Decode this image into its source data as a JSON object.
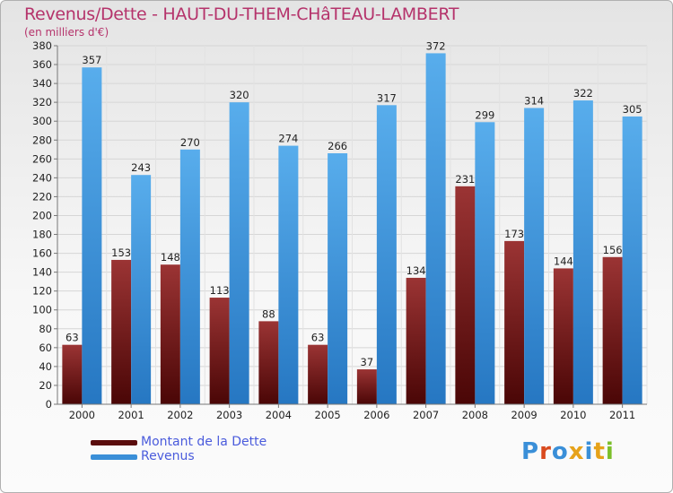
{
  "header": {
    "title": "Revenus/Dette - HAUT-DU-THEM-CHâTEAU-LAMBERT",
    "subtitle": "(en milliers d'€)"
  },
  "legend": {
    "items": [
      "Montant de la Dette",
      "Revenus"
    ]
  },
  "logo": {
    "text": "Proxiti"
  },
  "colors": {
    "dette": "#7a1f1f",
    "revenus": "#3a8fd8",
    "text": "#b5336b",
    "legend_text": "#4a5bdc"
  },
  "chart_data": {
    "type": "bar",
    "title": "Revenus/Dette - HAUT-DU-THEM-CHâTEAU-LAMBERT",
    "ylabel": "(en milliers d'€)",
    "categories": [
      "2000",
      "2001",
      "2002",
      "2003",
      "2004",
      "2005",
      "2006",
      "2007",
      "2008",
      "2009",
      "2010",
      "2011"
    ],
    "series": [
      {
        "name": "Montant de la Dette",
        "values": [
          63,
          153,
          148,
          113,
          88,
          63,
          37,
          134,
          231,
          173,
          144,
          156
        ]
      },
      {
        "name": "Revenus",
        "values": [
          357,
          243,
          270,
          320,
          274,
          266,
          317,
          372,
          299,
          314,
          322,
          305
        ]
      }
    ],
    "ylim": [
      0,
      380
    ],
    "yticks": [
      0,
      20,
      40,
      60,
      80,
      100,
      120,
      140,
      160,
      180,
      200,
      220,
      240,
      260,
      280,
      300,
      320,
      340,
      360,
      380
    ],
    "grid": true,
    "legend_position": "bottom-left"
  }
}
